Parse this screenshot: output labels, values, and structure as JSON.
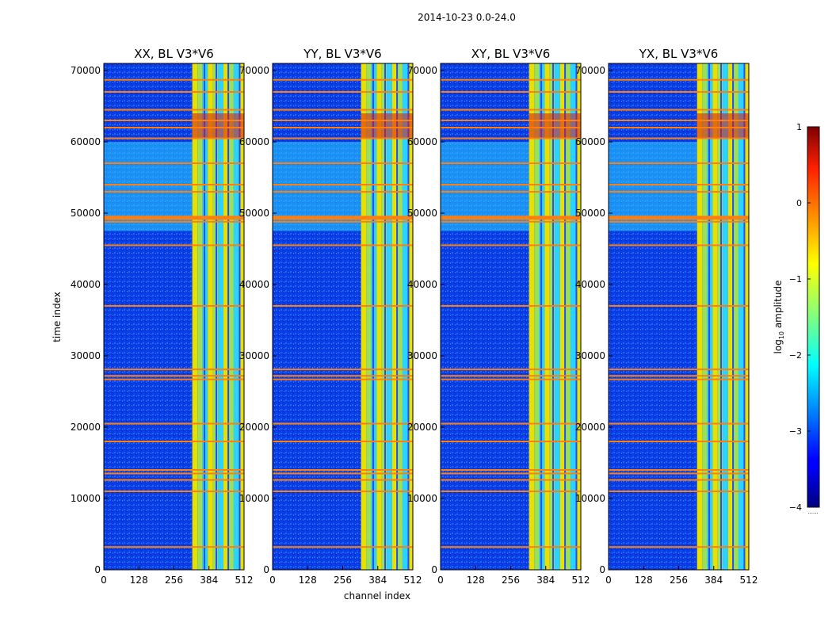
{
  "figure": {
    "suptitle": "2014-10-23 0.0-24.0"
  },
  "colorbar": {
    "label": "log",
    "label_sub": "10",
    "label_rest": " amplitude",
    "range": [
      -4,
      1
    ],
    "ticks": [
      "1",
      "0",
      "−1",
      "−2",
      "−3",
      "−4"
    ],
    "tick_values": [
      1,
      0,
      -1,
      -2,
      -3,
      -4
    ],
    "footer": "......"
  },
  "colors": {
    "background": "#000080",
    "rfi_line": "#ff7f0e",
    "band_yellow": "#e8e000",
    "band_green": "#9ce05a",
    "band_cyan": "#2ad4ff",
    "band_red": "#e01010"
  },
  "chart_data": [
    {
      "type": "heatmap",
      "title": "XX, BL V3*V6",
      "xlabel": "",
      "ylabel": "time index",
      "xlim": [
        0,
        512
      ],
      "ylim": [
        0,
        71000
      ],
      "xticks": [
        "0",
        "128",
        "256",
        "384",
        "512"
      ],
      "xtick_values": [
        0,
        128,
        256,
        384,
        512
      ],
      "yticks": [
        "0",
        "10000",
        "20000",
        "30000",
        "40000",
        "50000",
        "60000",
        "70000"
      ],
      "ytick_values": [
        0,
        10000,
        20000,
        30000,
        40000,
        50000,
        60000,
        70000
      ],
      "high_channel_band": [
        323,
        512
      ],
      "rfi_rows": [
        3200,
        11000,
        12600,
        13500,
        14000,
        18000,
        20500,
        26700,
        27200,
        28100,
        37000,
        45500,
        48800,
        49300,
        53000,
        54000,
        57000,
        60500,
        62000,
        63000,
        64500,
        67000,
        68700
      ]
    },
    {
      "type": "heatmap",
      "title": "YY, BL V3*V6",
      "xlabel": "channel index",
      "ylabel": "",
      "xlim": [
        0,
        512
      ],
      "ylim": [
        0,
        71000
      ],
      "xticks": [
        "0",
        "128",
        "256",
        "384",
        "512"
      ],
      "xtick_values": [
        0,
        128,
        256,
        384,
        512
      ],
      "yticks": [
        "0",
        "10000",
        "20000",
        "30000",
        "40000",
        "50000",
        "60000",
        "70000"
      ],
      "ytick_values": [
        0,
        10000,
        20000,
        30000,
        40000,
        50000,
        60000,
        70000
      ],
      "high_channel_band": [
        323,
        512
      ],
      "rfi_rows": [
        3200,
        11000,
        12600,
        13500,
        14000,
        18000,
        20500,
        26700,
        27200,
        28100,
        37000,
        45500,
        48800,
        49300,
        53000,
        54000,
        57000,
        60500,
        62000,
        63000,
        64500,
        67000,
        68700
      ]
    },
    {
      "type": "heatmap",
      "title": "XY, BL V3*V6",
      "xlabel": "",
      "ylabel": "",
      "xlim": [
        0,
        512
      ],
      "ylim": [
        0,
        71000
      ],
      "xticks": [
        "0",
        "128",
        "256",
        "384",
        "512"
      ],
      "xtick_values": [
        0,
        128,
        256,
        384,
        512
      ],
      "yticks": [
        "0",
        "10000",
        "20000",
        "30000",
        "40000",
        "50000",
        "60000",
        "70000"
      ],
      "ytick_values": [
        0,
        10000,
        20000,
        30000,
        40000,
        50000,
        60000,
        70000
      ],
      "high_channel_band": [
        323,
        512
      ],
      "rfi_rows": [
        3200,
        11000,
        12600,
        13500,
        14000,
        18000,
        20500,
        26700,
        27200,
        28100,
        37000,
        45500,
        48800,
        49300,
        53000,
        54000,
        57000,
        60500,
        62000,
        63000,
        64500,
        67000,
        68700
      ]
    },
    {
      "type": "heatmap",
      "title": "YX, BL V3*V6",
      "xlabel": "",
      "ylabel": "",
      "xlim": [
        0,
        512
      ],
      "ylim": [
        0,
        71000
      ],
      "xticks": [
        "0",
        "128",
        "256",
        "384",
        "512"
      ],
      "xtick_values": [
        0,
        128,
        256,
        384,
        512
      ],
      "yticks": [
        "0",
        "10000",
        "20000",
        "30000",
        "40000",
        "50000",
        "60000",
        "70000"
      ],
      "ytick_values": [
        0,
        10000,
        20000,
        30000,
        40000,
        50000,
        60000,
        70000
      ],
      "high_channel_band": [
        323,
        512
      ],
      "rfi_rows": [
        3200,
        11000,
        12600,
        13500,
        14000,
        18000,
        20500,
        26700,
        27200,
        28100,
        37000,
        45500,
        48800,
        49300,
        53000,
        54000,
        57000,
        60500,
        62000,
        63000,
        64500,
        67000,
        68700
      ]
    }
  ]
}
